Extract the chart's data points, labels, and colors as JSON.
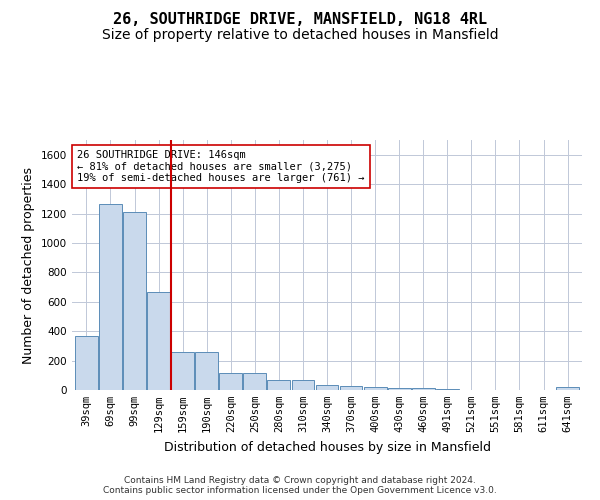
{
  "title": "26, SOUTHRIDGE DRIVE, MANSFIELD, NG18 4RL",
  "subtitle": "Size of property relative to detached houses in Mansfield",
  "xlabel": "Distribution of detached houses by size in Mansfield",
  "ylabel": "Number of detached properties",
  "categories": [
    "39sqm",
    "69sqm",
    "99sqm",
    "129sqm",
    "159sqm",
    "190sqm",
    "220sqm",
    "250sqm",
    "280sqm",
    "310sqm",
    "340sqm",
    "370sqm",
    "400sqm",
    "430sqm",
    "460sqm",
    "491sqm",
    "521sqm",
    "551sqm",
    "581sqm",
    "611sqm",
    "641sqm"
  ],
  "values": [
    370,
    1265,
    1210,
    665,
    260,
    260,
    115,
    115,
    65,
    65,
    35,
    30,
    20,
    15,
    12,
    5,
    0,
    0,
    0,
    0,
    20
  ],
  "bar_color": "#c9d9ec",
  "bar_edge_color": "#5b8db8",
  "vline_x": 3.5,
  "vline_color": "#cc0000",
  "annotation_text": "26 SOUTHRIDGE DRIVE: 146sqm\n← 81% of detached houses are smaller (3,275)\n19% of semi-detached houses are larger (761) →",
  "annotation_box_color": "#ffffff",
  "annotation_box_edgecolor": "#cc0000",
  "ylim": [
    0,
    1700
  ],
  "yticks": [
    0,
    200,
    400,
    600,
    800,
    1000,
    1200,
    1400,
    1600
  ],
  "footer": "Contains HM Land Registry data © Crown copyright and database right 2024.\nContains public sector information licensed under the Open Government Licence v3.0.",
  "bg_color": "#ffffff",
  "grid_color": "#c0c8d8",
  "title_fontsize": 11,
  "subtitle_fontsize": 10,
  "tick_fontsize": 7.5,
  "ylabel_fontsize": 9,
  "xlabel_fontsize": 9,
  "annotation_fontsize": 7.5,
  "footer_fontsize": 6.5
}
